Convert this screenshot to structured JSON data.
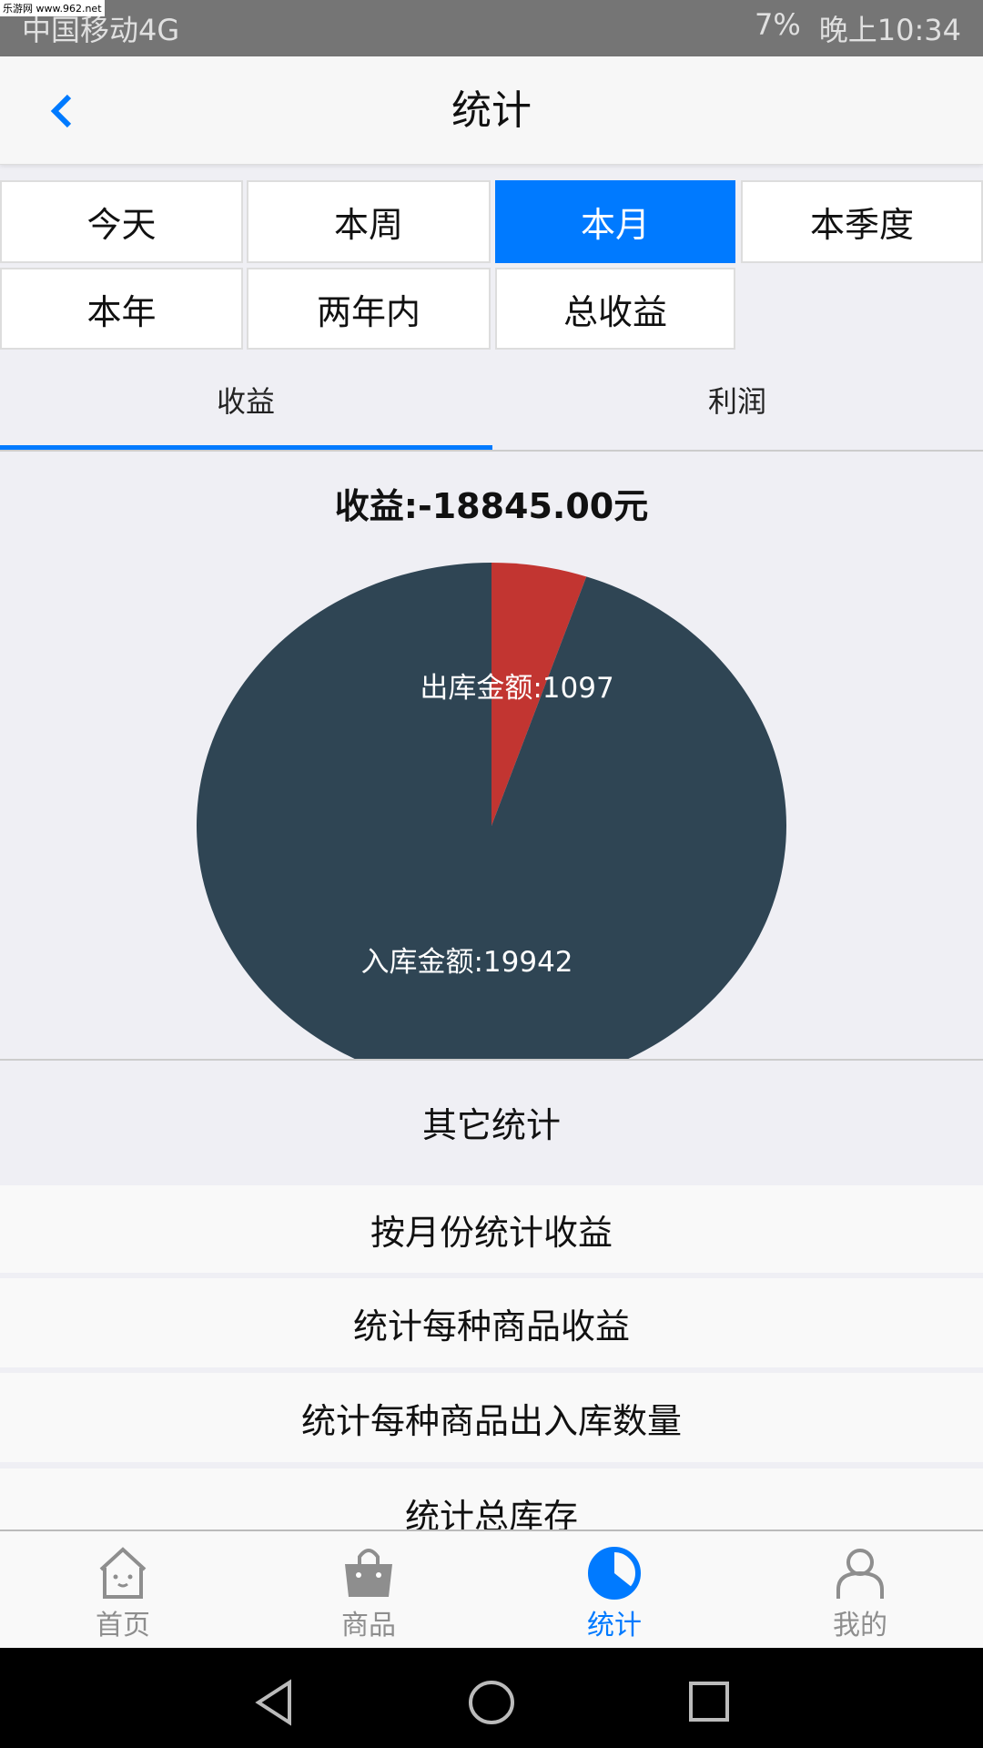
{
  "status_bar": {
    "carrier": "中国移动4G",
    "battery": "7%",
    "time": "晚上10:34",
    "watermark": "乐游网 www.962.net"
  },
  "header": {
    "title": "统计",
    "back_icon": "chevron-left-icon"
  },
  "periods": [
    {
      "label": "今天"
    },
    {
      "label": "本周"
    },
    {
      "label": "本月",
      "selected": true
    },
    {
      "label": "本季度"
    },
    {
      "label": "本年"
    },
    {
      "label": "两年内"
    },
    {
      "label": "总收益"
    }
  ],
  "segments": [
    {
      "label": "收益",
      "active": true
    },
    {
      "label": "利润"
    }
  ],
  "summary": "收益:-18845.00元",
  "chart_data": {
    "type": "pie",
    "slices": [
      {
        "label": "出库金额:1097",
        "name": "出库金额",
        "value": 1097,
        "color": "#c23531"
      },
      {
        "label": "入库金额:19942",
        "name": "入库金额",
        "value": 19942,
        "color": "#2f4554"
      }
    ]
  },
  "other": {
    "title": "其它统计",
    "items": [
      "按月份统计收益",
      "统计每种商品收益",
      "统计每种商品出入库数量",
      "统计总库存"
    ]
  },
  "nav": [
    {
      "label": "首页",
      "icon": "home-icon"
    },
    {
      "label": "商品",
      "icon": "bag-icon"
    },
    {
      "label": "统计",
      "icon": "pie-chart-icon",
      "active": true
    },
    {
      "label": "我的",
      "icon": "user-icon"
    }
  ],
  "colors": {
    "accent": "#007aff"
  }
}
